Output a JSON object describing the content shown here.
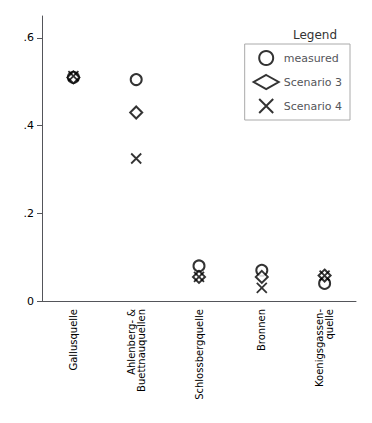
{
  "chart_data": {
    "type": "scatter",
    "categories": [
      "Gallusquelle",
      "Ahlenberg- &\nBuettnauquellen",
      "Schlossbergquelle",
      "Bronnen",
      "Koenigsgassen-\nquelle"
    ],
    "series": [
      {
        "name": "measured",
        "color": "black",
        "marker": "circle",
        "values": [
          0.51,
          0.505,
          0.08,
          0.07,
          0.04
        ]
      },
      {
        "name": "Scenario 3",
        "color": "black",
        "marker": "diamond",
        "values": [
          0.51,
          0.43,
          0.055,
          0.055,
          0.058
        ]
      },
      {
        "name": "Scenario 4",
        "color": "black",
        "marker": "x",
        "values": [
          0.513,
          0.325,
          0.055,
          0.03,
          0.058
        ]
      }
    ],
    "ylim": [
      0,
      0.65
    ],
    "yticks": [
      0,
      {
        "value": 0.2,
        "label": ".2"
      },
      {
        "value": 0.4,
        "label": ".4"
      },
      {
        "value": 0.6,
        "label": ".6"
      }
    ],
    "legend": "upper right",
    "legend_title": "Legend",
    "grid": false
  }
}
